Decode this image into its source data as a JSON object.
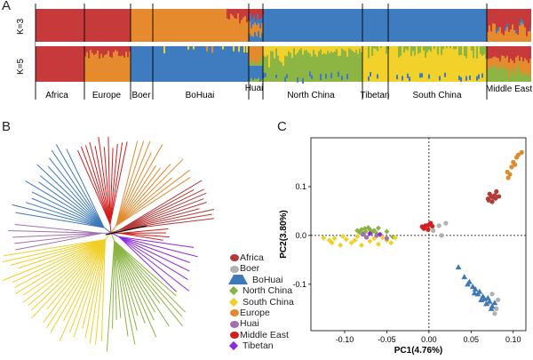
{
  "panels": {
    "a": "A",
    "b": "B",
    "c": "C"
  },
  "colors": {
    "africa": "#b33a38",
    "europe": "#e08a2e",
    "bohuai": "#3d78b9",
    "northchina": "#8bb343",
    "southchina": "#f0cf27",
    "boer": "#b1b1b1",
    "huai": "#a071ad",
    "middleeast": "#d21f1f",
    "tibetan": "#8a2be2",
    "red": "#c63a3b",
    "orange": "#e58a2d",
    "blue": "#3f7cbf",
    "green": "#8cb544",
    "yellow": "#f2d22a"
  },
  "structure": {
    "k_labels": [
      "K=3",
      "K=5"
    ],
    "populations": [
      "Africa",
      "Europe",
      "Boer",
      "BoHuai",
      "Huai",
      "North China",
      "Tibetan",
      "South China",
      "Middle East"
    ]
  },
  "legend": [
    {
      "label": "Africa",
      "shape": "dot",
      "color": "#b33a38"
    },
    {
      "label": "Boer",
      "shape": "dot",
      "color": "#b1b1b1"
    },
    {
      "label": "BoHuai",
      "shape": "triangle",
      "color": "#3d78b9"
    },
    {
      "label": "North China",
      "shape": "diamond",
      "color": "#8bb343"
    },
    {
      "label": "South China",
      "shape": "diamond",
      "color": "#f0cf27"
    },
    {
      "label": "Europe",
      "shape": "dot",
      "color": "#e08a2e"
    },
    {
      "label": "Huai",
      "shape": "dot",
      "color": "#a071ad"
    },
    {
      "label": "Middle East",
      "shape": "dot",
      "color": "#d21f1f"
    },
    {
      "label": "Tibetan",
      "shape": "diamond",
      "color": "#8a2be2"
    }
  ],
  "chart_data": {
    "type": "scatter",
    "xlabel": "PC1(4.76%)",
    "ylabel": "PC2(3.80%)",
    "xlim": [
      -0.14,
      0.115
    ],
    "ylim": [
      -0.195,
      0.2
    ],
    "xticks": [
      -0.1,
      -0.05,
      0.0,
      0.05,
      0.1
    ],
    "xtick_labels": [
      "-0.10",
      "-0.05",
      "0.00",
      "0.05",
      "0.10"
    ],
    "yticks": [
      -0.1,
      0.0,
      0.1
    ],
    "ytick_labels": [
      "-0.1",
      "0.0",
      "0.1"
    ],
    "grid": false,
    "series": [
      {
        "name": "Africa",
        "color": "#b33a38",
        "shape": "dot",
        "points": [
          [
            0.07,
            0.075
          ],
          [
            0.074,
            0.08
          ],
          [
            0.072,
            0.085
          ],
          [
            0.078,
            0.082
          ],
          [
            0.076,
            0.078
          ],
          [
            0.08,
            0.09
          ],
          [
            0.071,
            0.072
          ],
          [
            0.079,
            0.076
          ],
          [
            0.083,
            0.08
          ],
          [
            0.075,
            0.069
          ]
        ]
      },
      {
        "name": "Europe",
        "color": "#e08a2e",
        "shape": "dot",
        "points": [
          [
            0.093,
            0.13
          ],
          [
            0.098,
            0.14
          ],
          [
            0.1,
            0.15
          ],
          [
            0.104,
            0.16
          ],
          [
            0.106,
            0.165
          ],
          [
            0.11,
            0.17
          ],
          [
            0.096,
            0.125
          ],
          [
            0.102,
            0.145
          ],
          [
            0.094,
            0.118
          ]
        ]
      },
      {
        "name": "Boer",
        "color": "#b1b1b1",
        "shape": "dot",
        "points": [
          [
            0.005,
            0.01
          ],
          [
            0.012,
            0.02
          ],
          [
            0.02,
            0.025
          ],
          [
            0.015,
            0.0
          ],
          [
            0.075,
            -0.12
          ],
          [
            0.08,
            -0.15
          ],
          [
            0.07,
            -0.14
          ],
          [
            0.082,
            -0.132
          ],
          [
            0.078,
            -0.16
          ]
        ]
      },
      {
        "name": "BoHuai",
        "color": "#3d78b9",
        "shape": "triangle",
        "points": [
          [
            0.035,
            -0.065
          ],
          [
            0.042,
            -0.085
          ],
          [
            0.048,
            -0.095
          ],
          [
            0.052,
            -0.105
          ],
          [
            0.055,
            -0.11
          ],
          [
            0.06,
            -0.115
          ],
          [
            0.058,
            -0.12
          ],
          [
            0.064,
            -0.125
          ],
          [
            0.066,
            -0.13
          ],
          [
            0.07,
            -0.128
          ],
          [
            0.072,
            -0.135
          ],
          [
            0.068,
            -0.14
          ],
          [
            0.075,
            -0.145
          ],
          [
            0.062,
            -0.132
          ],
          [
            0.054,
            -0.118
          ],
          [
            0.074,
            -0.15
          ],
          [
            0.078,
            -0.138
          ],
          [
            0.046,
            -0.1
          ]
        ]
      },
      {
        "name": "North China",
        "color": "#8bb343",
        "shape": "diamond",
        "points": [
          [
            -0.085,
            0.01
          ],
          [
            -0.08,
            0.012
          ],
          [
            -0.075,
            0.008
          ],
          [
            -0.07,
            0.012
          ],
          [
            -0.065,
            0.01
          ],
          [
            -0.06,
            0.015
          ],
          [
            -0.078,
            0.004
          ],
          [
            -0.072,
            0.016
          ],
          [
            -0.068,
            0.006
          ],
          [
            -0.082,
            0.006
          ],
          [
            -0.062,
            0.004
          ],
          [
            -0.05,
            0.008
          ],
          [
            -0.043,
            -0.003
          ],
          [
            -0.076,
            0.014
          ]
        ]
      },
      {
        "name": "South China",
        "color": "#f0cf27",
        "shape": "diamond",
        "points": [
          [
            -0.125,
            -0.005
          ],
          [
            -0.118,
            -0.01
          ],
          [
            -0.112,
            -0.006
          ],
          [
            -0.105,
            -0.02
          ],
          [
            -0.098,
            -0.008
          ],
          [
            -0.092,
            -0.015
          ],
          [
            -0.085,
            -0.002
          ],
          [
            -0.08,
            -0.02
          ],
          [
            -0.07,
            -0.012
          ],
          [
            -0.06,
            -0.018
          ],
          [
            -0.05,
            -0.01
          ],
          [
            -0.04,
            -0.005
          ],
          [
            -0.115,
            -0.015
          ],
          [
            -0.102,
            -0.002
          ],
          [
            -0.088,
            -0.01
          ],
          [
            -0.065,
            -0.006
          ],
          [
            -0.055,
            -0.004
          ],
          [
            -0.045,
            -0.015
          ]
        ]
      },
      {
        "name": "Huai",
        "color": "#a071ad",
        "shape": "dot",
        "points": [
          [
            -0.078,
            0.002
          ],
          [
            -0.062,
            0.0
          ],
          [
            -0.05,
            -0.006
          ],
          [
            -0.074,
            -0.004
          ]
        ]
      },
      {
        "name": "Middle East",
        "color": "#d21f1f",
        "shape": "dot",
        "points": [
          [
            -0.008,
            0.018
          ],
          [
            -0.004,
            0.02
          ],
          [
            0.0,
            0.022
          ],
          [
            0.002,
            0.025
          ],
          [
            -0.006,
            0.014
          ],
          [
            0.004,
            0.019
          ],
          [
            -0.001,
            0.012
          ]
        ]
      },
      {
        "name": "Tibetan",
        "color": "#8a2be2",
        "shape": "diamond",
        "points": [
          [
            -0.07,
            0.004
          ],
          [
            -0.058,
            0.002
          ]
        ]
      }
    ]
  }
}
